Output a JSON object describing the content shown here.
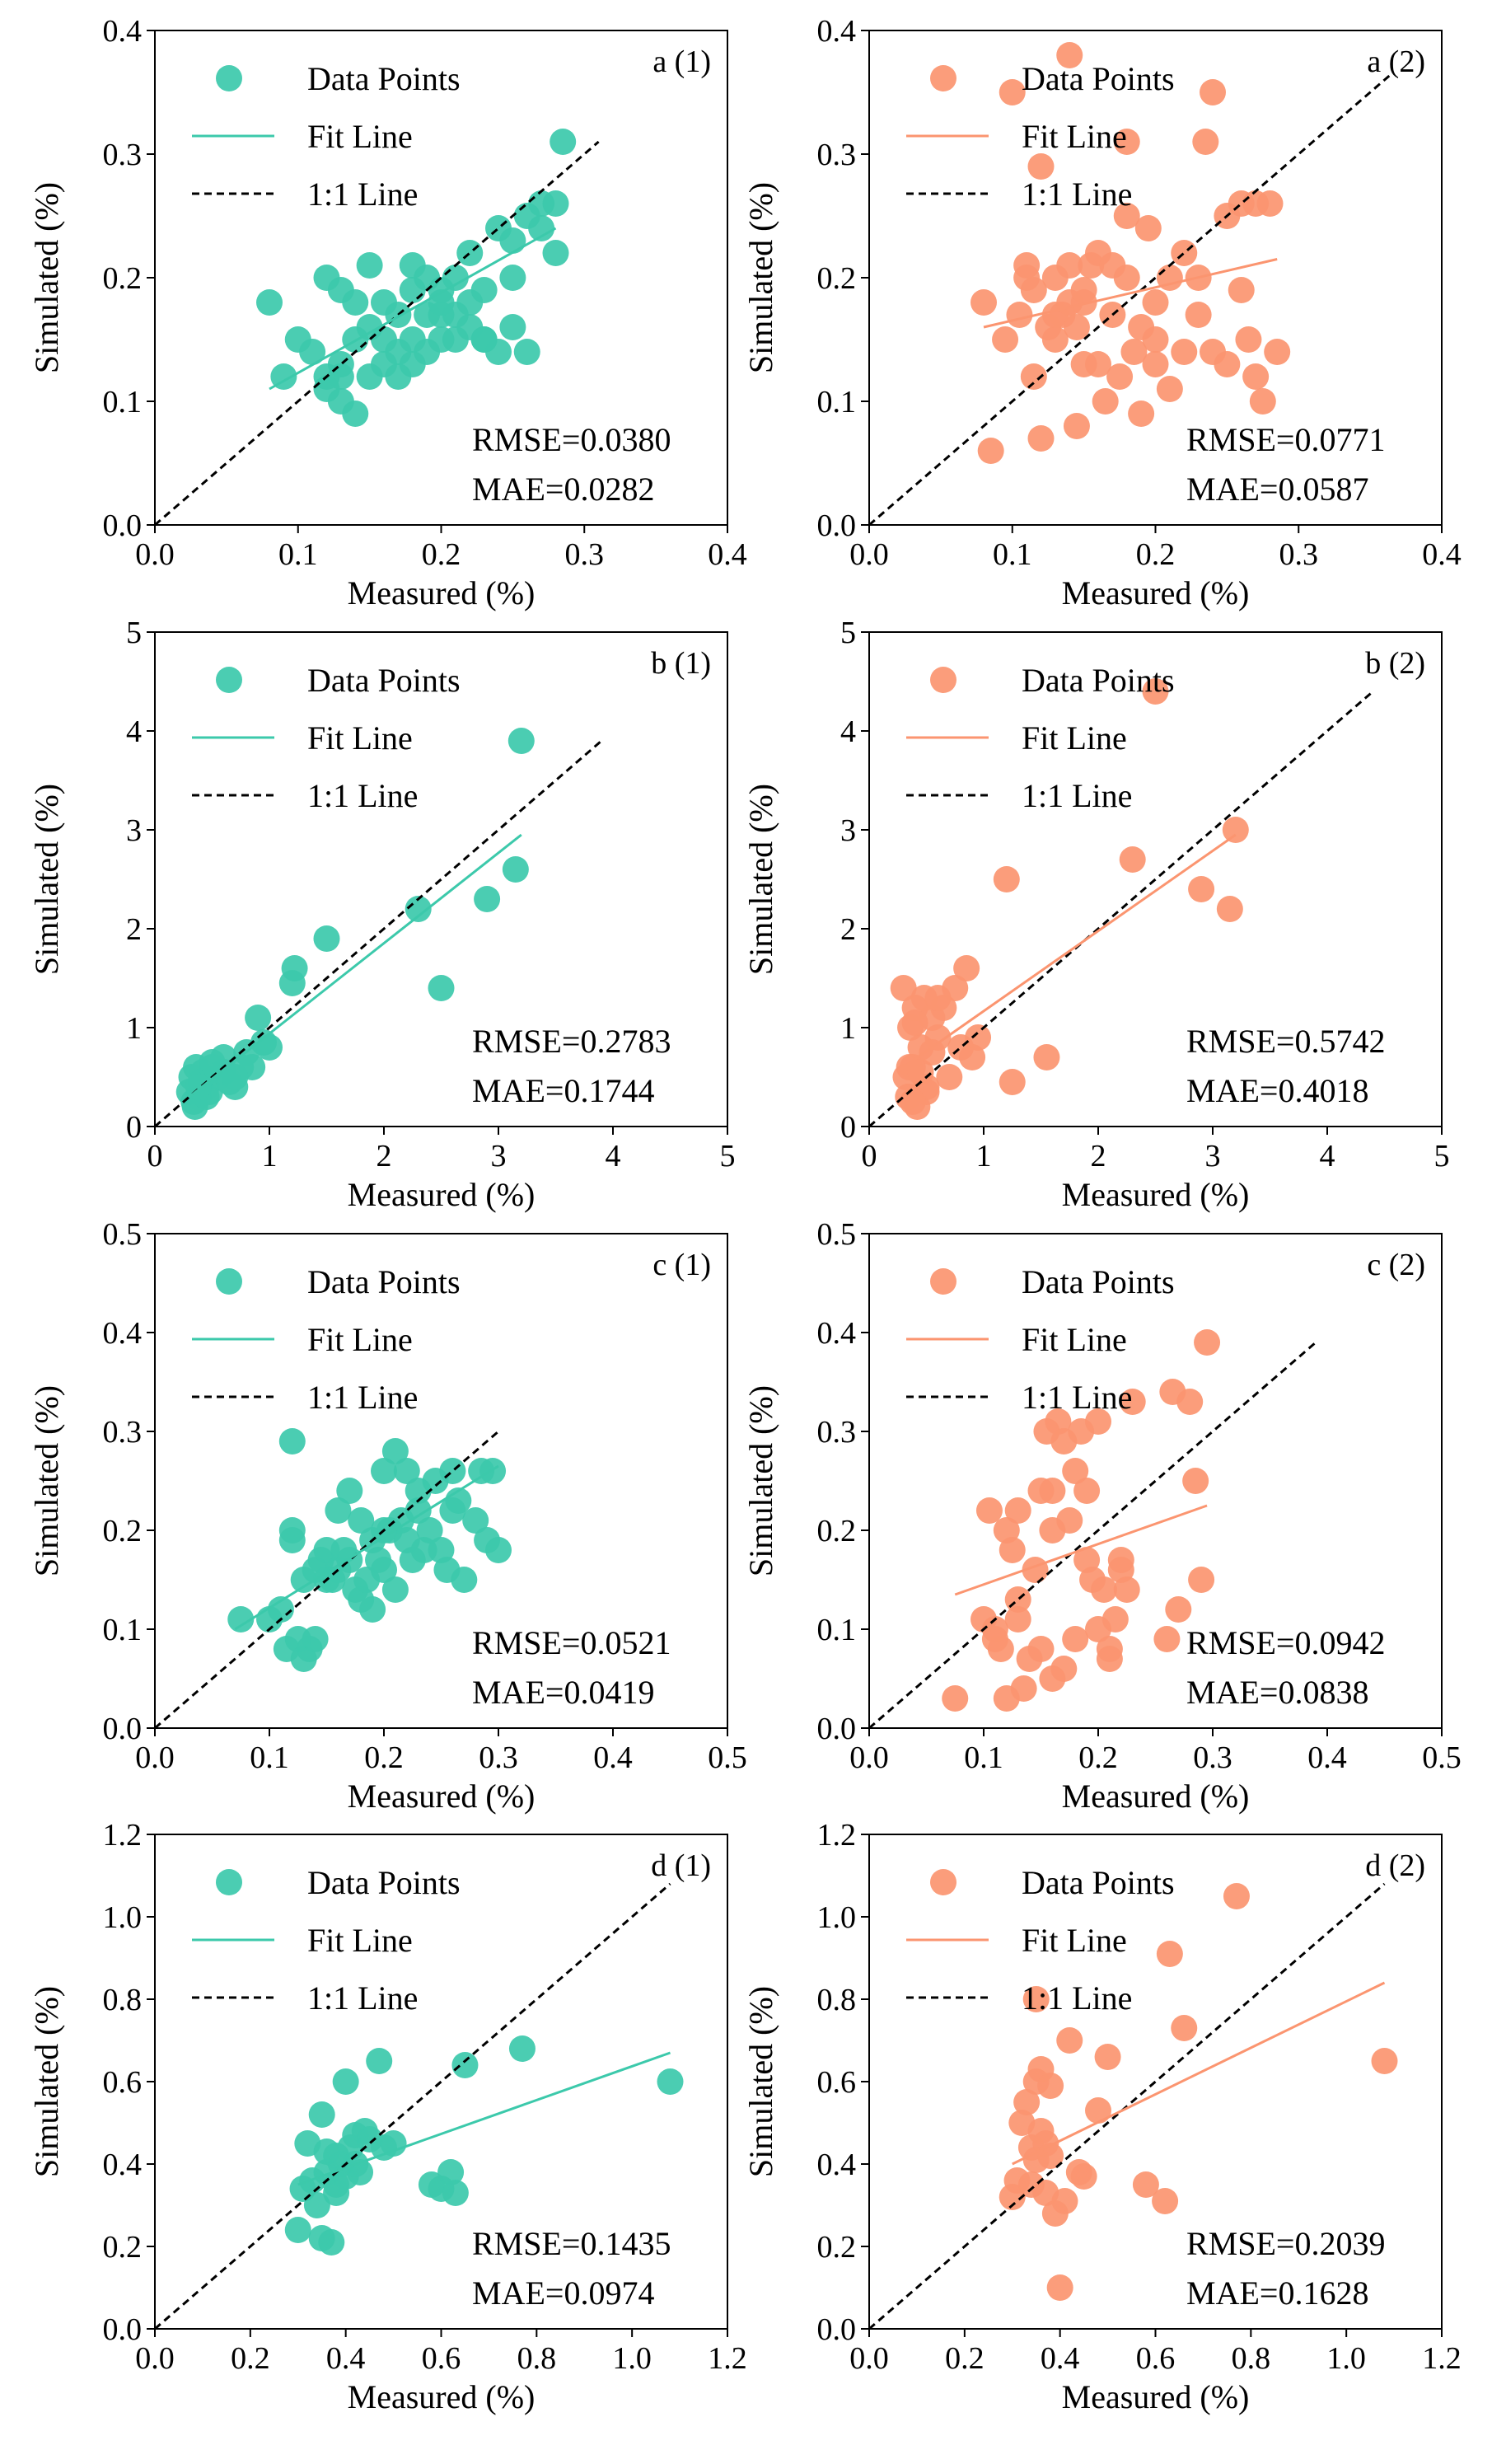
{
  "colors": {
    "teal": "#3cc9ab",
    "orange": "#fb9570",
    "identity": "#000000"
  },
  "legend": {
    "points": "Data Points",
    "fit": "Fit Line",
    "identity": "1:1 Line"
  },
  "chart_data": [
    {
      "type": "scatter",
      "title": "a (1)",
      "series_color": "teal",
      "xlabel": "Measured (%)",
      "ylabel": "Simulated (%)",
      "xlim": [
        0,
        0.4
      ],
      "ylim": [
        0,
        0.4
      ],
      "xticks": [
        0,
        0.1,
        0.2,
        0.3,
        0.4
      ],
      "yticks": [
        0,
        0.1,
        0.2,
        0.3,
        0.4
      ],
      "tick_labels_x": [
        "0.0",
        "0.1",
        "0.2",
        "0.3",
        "0.4"
      ],
      "tick_labels_y": [
        "0.0",
        "0.1",
        "0.2",
        "0.3",
        "0.4"
      ],
      "metrics": {
        "rmse": "RMSE=0.0380",
        "mae": "MAE=0.0282"
      },
      "fit_line": [
        [
          0.08,
          0.11
        ],
        [
          0.28,
          0.24
        ]
      ],
      "identity_line": [
        [
          0,
          0
        ],
        [
          0.31,
          0.31
        ]
      ],
      "x": [
        0.08,
        0.09,
        0.1,
        0.11,
        0.12,
        0.12,
        0.13,
        0.13,
        0.13,
        0.14,
        0.14,
        0.14,
        0.15,
        0.15,
        0.15,
        0.16,
        0.16,
        0.16,
        0.17,
        0.17,
        0.17,
        0.18,
        0.18,
        0.18,
        0.19,
        0.19,
        0.19,
        0.2,
        0.2,
        0.2,
        0.21,
        0.21,
        0.21,
        0.22,
        0.22,
        0.22,
        0.23,
        0.23,
        0.24,
        0.24,
        0.25,
        0.25,
        0.26,
        0.26,
        0.27,
        0.27,
        0.28,
        0.28,
        0.285,
        0.13,
        0.12,
        0.18,
        0.2,
        0.23,
        0.25
      ],
      "y": [
        0.18,
        0.12,
        0.15,
        0.14,
        0.12,
        0.2,
        0.1,
        0.13,
        0.19,
        0.09,
        0.15,
        0.18,
        0.12,
        0.16,
        0.21,
        0.13,
        0.15,
        0.18,
        0.12,
        0.14,
        0.17,
        0.13,
        0.15,
        0.21,
        0.14,
        0.17,
        0.2,
        0.15,
        0.17,
        0.19,
        0.15,
        0.17,
        0.2,
        0.16,
        0.18,
        0.22,
        0.15,
        0.19,
        0.14,
        0.24,
        0.2,
        0.23,
        0.14,
        0.25,
        0.24,
        0.26,
        0.22,
        0.26,
        0.31,
        0.12,
        0.11,
        0.19,
        0.18,
        0.15,
        0.16
      ]
    },
    {
      "type": "scatter",
      "title": "a (2)",
      "series_color": "orange",
      "xlabel": "Measured (%)",
      "ylabel": "Simulated (%)",
      "xlim": [
        0,
        0.4
      ],
      "ylim": [
        0,
        0.4
      ],
      "xticks": [
        0,
        0.1,
        0.2,
        0.3,
        0.4
      ],
      "yticks": [
        0,
        0.1,
        0.2,
        0.3,
        0.4
      ],
      "tick_labels_x": [
        "0.0",
        "0.1",
        "0.2",
        "0.3",
        "0.4"
      ],
      "tick_labels_y": [
        "0.0",
        "0.1",
        "0.2",
        "0.3",
        "0.4"
      ],
      "metrics": {
        "rmse": "RMSE=0.0771",
        "mae": "MAE=0.0587"
      },
      "fit_line": [
        [
          0.08,
          0.16
        ],
        [
          0.285,
          0.215
        ]
      ],
      "identity_line": [
        [
          0,
          0
        ],
        [
          0.365,
          0.365
        ]
      ],
      "x": [
        0.08,
        0.085,
        0.095,
        0.1,
        0.105,
        0.11,
        0.115,
        0.115,
        0.12,
        0.12,
        0.125,
        0.13,
        0.13,
        0.135,
        0.14,
        0.14,
        0.145,
        0.15,
        0.15,
        0.155,
        0.16,
        0.16,
        0.165,
        0.17,
        0.175,
        0.18,
        0.18,
        0.185,
        0.19,
        0.19,
        0.195,
        0.2,
        0.2,
        0.21,
        0.21,
        0.22,
        0.22,
        0.23,
        0.23,
        0.235,
        0.24,
        0.24,
        0.25,
        0.25,
        0.26,
        0.26,
        0.265,
        0.27,
        0.27,
        0.275,
        0.28,
        0.285,
        0.13,
        0.11,
        0.145,
        0.14,
        0.17,
        0.2,
        0.18,
        0.15
      ],
      "y": [
        0.18,
        0.06,
        0.15,
        0.35,
        0.17,
        0.21,
        0.12,
        0.19,
        0.07,
        0.29,
        0.16,
        0.15,
        0.2,
        0.17,
        0.21,
        0.38,
        0.08,
        0.13,
        0.18,
        0.21,
        0.13,
        0.22,
        0.1,
        0.17,
        0.12,
        0.31,
        0.25,
        0.14,
        0.09,
        0.16,
        0.24,
        0.15,
        0.18,
        0.11,
        0.2,
        0.14,
        0.22,
        0.17,
        0.2,
        0.31,
        0.14,
        0.35,
        0.13,
        0.25,
        0.19,
        0.26,
        0.15,
        0.12,
        0.26,
        0.1,
        0.26,
        0.14,
        0.17,
        0.2,
        0.16,
        0.18,
        0.21,
        0.13,
        0.2,
        0.19
      ]
    },
    {
      "type": "scatter",
      "title": "b (1)",
      "series_color": "teal",
      "xlabel": "Measured (%)",
      "ylabel": "Simulated (%)",
      "xlim": [
        0,
        5
      ],
      "ylim": [
        0,
        5
      ],
      "xticks": [
        0,
        1,
        2,
        3,
        4,
        5
      ],
      "yticks": [
        0,
        1,
        2,
        3,
        4,
        5
      ],
      "tick_labels_x": [
        "0",
        "1",
        "2",
        "3",
        "4",
        "5"
      ],
      "tick_labels_y": [
        "0",
        "1",
        "2",
        "3",
        "4",
        "5"
      ],
      "metrics": {
        "rmse": "RMSE=0.2783",
        "mae": "MAE=0.1744"
      },
      "fit_line": [
        [
          0.3,
          0.3
        ],
        [
          3.2,
          2.95
        ]
      ],
      "identity_line": [
        [
          0,
          0
        ],
        [
          3.9,
          3.9
        ]
      ],
      "x": [
        0.3,
        0.32,
        0.34,
        0.36,
        0.38,
        0.4,
        0.42,
        0.45,
        0.48,
        0.5,
        0.55,
        0.6,
        0.65,
        0.7,
        0.75,
        0.8,
        0.85,
        0.9,
        0.95,
        1.0,
        1.2,
        1.22,
        1.5,
        2.3,
        2.5,
        2.9,
        3.15,
        3.2,
        0.35,
        0.45,
        0.6,
        0.38,
        0.5,
        0.7
      ],
      "y": [
        0.35,
        0.5,
        0.25,
        0.6,
        0.3,
        0.45,
        0.55,
        0.4,
        0.35,
        0.6,
        0.5,
        0.7,
        0.45,
        0.4,
        0.6,
        0.75,
        0.6,
        1.1,
        0.85,
        0.8,
        1.45,
        1.6,
        1.9,
        2.2,
        1.4,
        2.3,
        2.6,
        3.9,
        0.2,
        0.3,
        0.55,
        0.4,
        0.65,
        0.5
      ]
    },
    {
      "type": "scatter",
      "title": "b (2)",
      "series_color": "orange",
      "xlabel": "Measured (%)",
      "ylabel": "Simulated (%)",
      "xlim": [
        0,
        5
      ],
      "ylim": [
        0,
        5
      ],
      "xticks": [
        0,
        1,
        2,
        3,
        4,
        5
      ],
      "yticks": [
        0,
        1,
        2,
        3,
        4,
        5
      ],
      "tick_labels_x": [
        "0",
        "1",
        "2",
        "3",
        "4",
        "5"
      ],
      "tick_labels_y": [
        "0",
        "1",
        "2",
        "3",
        "4",
        "5"
      ],
      "metrics": {
        "rmse": "RMSE=0.5742",
        "mae": "MAE=0.4018"
      },
      "fit_line": [
        [
          0.3,
          0.6
        ],
        [
          3.2,
          2.95
        ]
      ],
      "identity_line": [
        [
          0,
          0
        ],
        [
          4.4,
          4.4
        ]
      ],
      "x": [
        0.3,
        0.32,
        0.34,
        0.36,
        0.38,
        0.4,
        0.42,
        0.45,
        0.48,
        0.5,
        0.55,
        0.6,
        0.65,
        0.7,
        0.75,
        0.8,
        0.85,
        0.9,
        0.95,
        1.2,
        1.25,
        1.55,
        2.3,
        2.5,
        2.9,
        3.15,
        3.2,
        0.35,
        0.4,
        0.5,
        0.6,
        0.38,
        0.45,
        0.55
      ],
      "y": [
        1.4,
        0.5,
        0.3,
        1.0,
        0.6,
        1.2,
        0.2,
        0.8,
        1.3,
        0.4,
        1.1,
        0.9,
        1.2,
        0.5,
        1.4,
        0.8,
        1.6,
        0.7,
        0.9,
        2.5,
        0.45,
        0.7,
        2.7,
        4.4,
        2.4,
        2.2,
        3.0,
        0.6,
        1.05,
        0.35,
        1.3,
        0.25,
        0.55,
        0.75
      ]
    },
    {
      "type": "scatter",
      "title": "c (1)",
      "series_color": "teal",
      "xlabel": "Measured (%)",
      "ylabel": "Simulated (%)",
      "xlim": [
        0,
        0.5
      ],
      "ylim": [
        0,
        0.5
      ],
      "xticks": [
        0,
        0.1,
        0.2,
        0.3,
        0.4,
        0.5
      ],
      "yticks": [
        0,
        0.1,
        0.2,
        0.3,
        0.4,
        0.5
      ],
      "tick_labels_x": [
        "0.0",
        "0.1",
        "0.2",
        "0.3",
        "0.4",
        "0.5"
      ],
      "tick_labels_y": [
        "0.0",
        "0.1",
        "0.2",
        "0.3",
        "0.4",
        "0.5"
      ],
      "metrics": {
        "rmse": "RMSE=0.0521",
        "mae": "MAE=0.0419"
      },
      "fit_line": [
        [
          0.07,
          0.1
        ],
        [
          0.3,
          0.265
        ]
      ],
      "identity_line": [
        [
          0,
          0
        ],
        [
          0.3,
          0.3
        ]
      ],
      "x": [
        0.075,
        0.1,
        0.11,
        0.115,
        0.12,
        0.12,
        0.125,
        0.13,
        0.13,
        0.135,
        0.14,
        0.14,
        0.145,
        0.15,
        0.155,
        0.16,
        0.16,
        0.165,
        0.17,
        0.175,
        0.18,
        0.18,
        0.185,
        0.19,
        0.19,
        0.195,
        0.2,
        0.2,
        0.205,
        0.21,
        0.21,
        0.215,
        0.22,
        0.22,
        0.225,
        0.23,
        0.235,
        0.24,
        0.245,
        0.25,
        0.255,
        0.26,
        0.265,
        0.27,
        0.28,
        0.285,
        0.29,
        0.295,
        0.3,
        0.12,
        0.17,
        0.2,
        0.23,
        0.26,
        0.15
      ],
      "y": [
        0.11,
        0.11,
        0.12,
        0.08,
        0.29,
        0.2,
        0.09,
        0.07,
        0.15,
        0.08,
        0.16,
        0.09,
        0.17,
        0.18,
        0.15,
        0.22,
        0.16,
        0.18,
        0.24,
        0.14,
        0.21,
        0.13,
        0.15,
        0.12,
        0.19,
        0.17,
        0.26,
        0.16,
        0.2,
        0.14,
        0.28,
        0.21,
        0.19,
        0.26,
        0.17,
        0.22,
        0.18,
        0.2,
        0.25,
        0.18,
        0.16,
        0.26,
        0.23,
        0.15,
        0.21,
        0.26,
        0.19,
        0.26,
        0.18,
        0.19,
        0.17,
        0.2,
        0.24,
        0.22,
        0.15
      ]
    },
    {
      "type": "scatter",
      "title": "c (2)",
      "series_color": "orange",
      "xlabel": "Measured (%)",
      "ylabel": "Simulated (%)",
      "xlim": [
        0,
        0.5
      ],
      "ylim": [
        0,
        0.5
      ],
      "xticks": [
        0,
        0.1,
        0.2,
        0.3,
        0.4,
        0.5
      ],
      "yticks": [
        0,
        0.1,
        0.2,
        0.3,
        0.4,
        0.5
      ],
      "tick_labels_x": [
        "0.0",
        "0.1",
        "0.2",
        "0.3",
        "0.4",
        "0.5"
      ],
      "tick_labels_y": [
        "0.0",
        "0.1",
        "0.2",
        "0.3",
        "0.4",
        "0.5"
      ],
      "metrics": {
        "rmse": "RMSE=0.0942",
        "mae": "MAE=0.0838"
      },
      "fit_line": [
        [
          0.075,
          0.135
        ],
        [
          0.295,
          0.225
        ]
      ],
      "identity_line": [
        [
          0,
          0
        ],
        [
          0.39,
          0.39
        ]
      ],
      "x": [
        0.075,
        0.1,
        0.105,
        0.11,
        0.115,
        0.12,
        0.12,
        0.125,
        0.13,
        0.13,
        0.135,
        0.14,
        0.145,
        0.15,
        0.15,
        0.155,
        0.16,
        0.16,
        0.165,
        0.17,
        0.175,
        0.18,
        0.18,
        0.185,
        0.19,
        0.19,
        0.195,
        0.2,
        0.2,
        0.205,
        0.21,
        0.21,
        0.215,
        0.22,
        0.22,
        0.225,
        0.23,
        0.26,
        0.265,
        0.27,
        0.28,
        0.285,
        0.29,
        0.295,
        0.16,
        0.13,
        0.17,
        0.11
      ],
      "y": [
        0.03,
        0.11,
        0.22,
        0.1,
        0.08,
        0.2,
        0.03,
        0.18,
        0.13,
        0.22,
        0.04,
        0.07,
        0.16,
        0.24,
        0.08,
        0.3,
        0.05,
        0.24,
        0.31,
        0.06,
        0.21,
        0.09,
        0.26,
        0.3,
        0.17,
        0.24,
        0.15,
        0.31,
        0.1,
        0.14,
        0.08,
        0.07,
        0.11,
        0.17,
        0.16,
        0.14,
        0.33,
        0.09,
        0.34,
        0.12,
        0.33,
        0.25,
        0.15,
        0.39,
        0.2,
        0.11,
        0.29,
        0.09
      ]
    },
    {
      "type": "scatter",
      "title": "d (1)",
      "series_color": "teal",
      "xlabel": "Measured (%)",
      "ylabel": "Simulated (%)",
      "xlim": [
        0,
        1.2
      ],
      "ylim": [
        0,
        1.2
      ],
      "xticks": [
        0,
        0.2,
        0.4,
        0.6,
        0.8,
        1.0,
        1.2
      ],
      "yticks": [
        0,
        0.2,
        0.4,
        0.6,
        0.8,
        1.0,
        1.2
      ],
      "tick_labels_x": [
        "0.0",
        "0.2",
        "0.4",
        "0.6",
        "0.8",
        "1.0",
        "1.2"
      ],
      "tick_labels_y": [
        "0.0",
        "0.2",
        "0.4",
        "0.6",
        "0.8",
        "1.0",
        "1.2"
      ],
      "metrics": {
        "rmse": "RMSE=0.1435",
        "mae": "MAE=0.0974"
      },
      "fit_line": [
        [
          0.3,
          0.35
        ],
        [
          1.08,
          0.67
        ]
      ],
      "identity_line": [
        [
          0,
          0
        ],
        [
          1.08,
          1.08
        ]
      ],
      "x": [
        0.3,
        0.31,
        0.32,
        0.33,
        0.34,
        0.35,
        0.35,
        0.36,
        0.37,
        0.38,
        0.38,
        0.39,
        0.4,
        0.4,
        0.41,
        0.42,
        0.43,
        0.44,
        0.45,
        0.47,
        0.48,
        0.5,
        0.58,
        0.6,
        0.62,
        0.63,
        0.65,
        0.77,
        1.08,
        0.36,
        0.38,
        0.42
      ],
      "y": [
        0.24,
        0.34,
        0.45,
        0.36,
        0.3,
        0.52,
        0.22,
        0.43,
        0.21,
        0.42,
        0.35,
        0.4,
        0.6,
        0.37,
        0.44,
        0.47,
        0.38,
        0.48,
        0.46,
        0.65,
        0.44,
        0.45,
        0.35,
        0.34,
        0.38,
        0.33,
        0.64,
        0.68,
        0.6,
        0.38,
        0.33,
        0.4
      ]
    },
    {
      "type": "scatter",
      "title": "d (2)",
      "series_color": "orange",
      "xlabel": "Measured (%)",
      "ylabel": "Simulated (%)",
      "xlim": [
        0,
        1.2
      ],
      "ylim": [
        0,
        1.2
      ],
      "xticks": [
        0,
        0.2,
        0.4,
        0.6,
        0.8,
        1.0,
        1.2
      ],
      "yticks": [
        0,
        0.2,
        0.4,
        0.6,
        0.8,
        1.0,
        1.2
      ],
      "tick_labels_x": [
        "0.0",
        "0.2",
        "0.4",
        "0.6",
        "0.8",
        "1.0",
        "1.2"
      ],
      "tick_labels_y": [
        "0.0",
        "0.2",
        "0.4",
        "0.6",
        "0.8",
        "1.0",
        "1.2"
      ],
      "metrics": {
        "rmse": "RMSE=0.2039",
        "mae": "MAE=0.1628"
      },
      "fit_line": [
        [
          0.3,
          0.4
        ],
        [
          1.08,
          0.84
        ]
      ],
      "identity_line": [
        [
          0,
          0
        ],
        [
          1.08,
          1.08
        ]
      ],
      "x": [
        0.3,
        0.31,
        0.32,
        0.33,
        0.34,
        0.34,
        0.35,
        0.35,
        0.36,
        0.36,
        0.37,
        0.37,
        0.38,
        0.39,
        0.4,
        0.41,
        0.42,
        0.44,
        0.45,
        0.48,
        0.5,
        0.58,
        0.62,
        0.63,
        0.66,
        0.77,
        1.08,
        0.35,
        0.38
      ],
      "y": [
        0.32,
        0.36,
        0.5,
        0.55,
        0.44,
        0.35,
        0.8,
        0.6,
        0.48,
        0.63,
        0.45,
        0.33,
        0.59,
        0.28,
        0.1,
        0.31,
        0.7,
        0.38,
        0.37,
        0.53,
        0.66,
        0.35,
        0.31,
        0.91,
        0.73,
        1.05,
        0.65,
        0.41,
        0.42
      ]
    }
  ]
}
